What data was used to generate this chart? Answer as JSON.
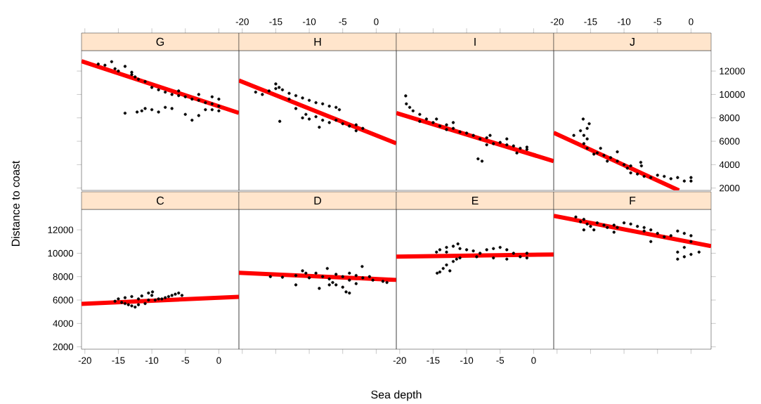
{
  "chart_data": [
    {
      "type": "scatter",
      "title": "G",
      "ylabel": "Distance to coast",
      "xlim": [
        -20.5,
        3
      ],
      "ylim": [
        1800,
        13750
      ],
      "xticks": [
        -20,
        -15,
        -10,
        -5,
        0
      ],
      "yticks": [
        2000,
        4000,
        6000,
        8000,
        10000,
        12000
      ],
      "marker": "circle",
      "tick_labels": false,
      "series": [
        {
          "type": "scatter",
          "color": "#000000",
          "x": [
            -18,
            -17,
            -16,
            -15.5,
            -15,
            -14,
            -13,
            -12.5,
            -12,
            -11,
            -10,
            -9,
            -8,
            -7,
            -6,
            -5,
            -4,
            -3,
            -2,
            -1,
            0,
            0,
            -1,
            -3,
            -6,
            -11,
            -12.2,
            -10,
            -9,
            -7,
            -5,
            -4,
            -3,
            -2,
            -14,
            -11.5,
            -8,
            -1,
            0,
            -13
          ],
          "values": [
            12600,
            12500,
            12800,
            12200,
            12000,
            12400,
            11900,
            11500,
            11300,
            11100,
            10600,
            10400,
            10200,
            10000,
            9900,
            9800,
            9600,
            9500,
            9300,
            9200,
            9000,
            9600,
            9800,
            10000,
            10300,
            8800,
            8500,
            8700,
            8500,
            8800,
            8300,
            7800,
            8200,
            8700,
            8400,
            8600,
            8900,
            8700,
            8600,
            11700
          ]
        },
        {
          "type": "line",
          "color": "#ff0000",
          "marker": "none",
          "x": [
            -20.5,
            3
          ],
          "values": [
            12850,
            8420
          ]
        }
      ]
    },
    {
      "type": "scatter",
      "title": "H",
      "xlim": [
        -20.5,
        3
      ],
      "ylim": [
        1800,
        13750
      ],
      "xticks": [
        -20,
        -15,
        -10,
        -5,
        0
      ],
      "yticks": [
        2000,
        4000,
        6000,
        8000,
        10000,
        12000
      ],
      "marker": "circle",
      "tick_labels": "x",
      "series": [
        {
          "type": "scatter",
          "color": "#000000",
          "x": [
            -18,
            -17,
            -16,
            -15,
            -14.5,
            -14,
            -13,
            -12,
            -11,
            -10,
            -9,
            -8,
            -7,
            -6,
            -5.5,
            -11,
            -10,
            -9,
            -8,
            -7,
            -6,
            -5,
            -4,
            -3,
            -2,
            -3,
            -14.4,
            -8.5,
            -10.5,
            -12,
            -15,
            -13
          ],
          "values": [
            10200,
            10000,
            10300,
            10900,
            10600,
            10400,
            10100,
            9900,
            9700,
            9500,
            9300,
            9200,
            9000,
            8900,
            8700,
            8000,
            7900,
            8100,
            7800,
            7600,
            7800,
            7500,
            7300,
            7400,
            7100,
            6900,
            7700,
            7200,
            8300,
            8800,
            10500,
            9600
          ]
        },
        {
          "type": "line",
          "color": "#ff0000",
          "marker": "none",
          "x": [
            -20.5,
            3
          ],
          "values": [
            11200,
            5820
          ]
        }
      ]
    },
    {
      "type": "scatter",
      "title": "I",
      "xlim": [
        -20.5,
        3
      ],
      "ylim": [
        1800,
        13750
      ],
      "xticks": [
        -20,
        -15,
        -10,
        -5,
        0
      ],
      "yticks": [
        2000,
        4000,
        6000,
        8000,
        10000,
        12000
      ],
      "marker": "circle",
      "tick_labels": false,
      "series": [
        {
          "type": "scatter",
          "color": "#000000",
          "x": [
            -19.1,
            -19,
            -18.5,
            -18,
            -17,
            -16,
            -15,
            -14,
            -13,
            -12,
            -11,
            -10,
            -9,
            -17,
            -14.5,
            -13,
            -8,
            -7,
            -7,
            -6,
            -5,
            -4,
            -3,
            -2,
            -1,
            -1,
            -4,
            -8.3,
            -7.7,
            -2.5,
            -6.5,
            -12
          ],
          "values": [
            9880,
            9200,
            8900,
            8600,
            8300,
            7900,
            7600,
            7300,
            7000,
            7100,
            6800,
            6700,
            6500,
            7700,
            7900,
            7400,
            6200,
            6300,
            5700,
            5800,
            5900,
            5700,
            5600,
            5400,
            5500,
            5300,
            6200,
            4500,
            4300,
            5000,
            6500,
            7600
          ]
        },
        {
          "type": "line",
          "color": "#ff0000",
          "marker": "none",
          "x": [
            -20.5,
            3
          ],
          "values": [
            8420,
            4300
          ]
        }
      ]
    },
    {
      "type": "scatter",
      "title": "J",
      "xlim": [
        -20.5,
        3
      ],
      "ylim": [
        1800,
        13750
      ],
      "xticks": [
        -20,
        -15,
        -10,
        -5,
        0
      ],
      "yticks": [
        2000,
        4000,
        6000,
        8000,
        10000,
        12000
      ],
      "marker": "circle",
      "series": [
        {
          "type": "scatter",
          "color": "#000000",
          "x": [
            -16.1,
            -15.2,
            -15.5,
            -17.5,
            -16.5,
            -16,
            -15.5,
            -16,
            -15.5,
            -14.5,
            -13,
            -12,
            -11,
            -10,
            -9.5,
            -9,
            -8,
            -7,
            -6,
            -5,
            -4,
            -3,
            -2,
            -1,
            0,
            0,
            -9,
            -11,
            -13.5,
            -7.5,
            -7.4,
            -12.5,
            -14
          ],
          "values": [
            7900,
            7500,
            7100,
            6500,
            6900,
            6500,
            6200,
            5800,
            5400,
            4900,
            4800,
            4600,
            4300,
            4000,
            3700,
            3300,
            3200,
            3000,
            2900,
            3100,
            3000,
            2800,
            2900,
            2600,
            2600,
            2900,
            3900,
            5100,
            5400,
            4200,
            3900,
            4300,
            5000
          ]
        },
        {
          "type": "line",
          "color": "#ff0000",
          "marker": "none",
          "x": [
            -20.5,
            -1.8
          ],
          "values": [
            6730,
            1800
          ]
        }
      ]
    },
    {
      "type": "scatter",
      "title": "C",
      "xlim": [
        -20.5,
        3
      ],
      "ylim": [
        1800,
        13750
      ],
      "xticks": [
        -20,
        -15,
        -10,
        -5,
        0
      ],
      "yticks": [
        2000,
        4000,
        6000,
        8000,
        10000,
        12000
      ],
      "marker": "circle",
      "series": [
        {
          "type": "scatter",
          "color": "#000000",
          "x": [
            -15.5,
            -15,
            -14.5,
            -14,
            -13.5,
            -13,
            -12.5,
            -12,
            -12,
            -11.5,
            -11,
            -10.5,
            -10,
            -9.9,
            -9.5,
            -9,
            -8.5,
            -8,
            -7.5,
            -7,
            -6.5,
            -6,
            -5.5,
            -14,
            -13,
            -10.5
          ],
          "values": [
            5900,
            6100,
            5800,
            6200,
            5600,
            6300,
            5400,
            5600,
            6100,
            6350,
            5700,
            6000,
            6400,
            6700,
            6000,
            6100,
            6100,
            6200,
            6300,
            6400,
            6500,
            6600,
            6400,
            5700,
            5500,
            6600
          ]
        },
        {
          "type": "line",
          "color": "#ff0000",
          "marker": "none",
          "x": [
            -20.5,
            3
          ],
          "values": [
            5670,
            6280
          ]
        }
      ]
    },
    {
      "type": "scatter",
      "title": "D",
      "xlabel": "Sea depth",
      "xlim": [
        -20.5,
        3
      ],
      "ylim": [
        1800,
        13750
      ],
      "xticks": [
        -20,
        -15,
        -10,
        -5,
        0
      ],
      "yticks": [
        2000,
        4000,
        6000,
        8000,
        10000,
        12000
      ],
      "marker": "circle",
      "tick_labels": false,
      "series": [
        {
          "type": "scatter",
          "color": "#000000",
          "x": [
            -15.8,
            -14,
            -12,
            -11,
            -10.5,
            -10,
            -9,
            -8,
            -7.3,
            -7,
            -6,
            -5,
            -4,
            -4,
            -3,
            -2.1,
            -2,
            -1,
            -0.5,
            1,
            1.6,
            -12,
            -8.5,
            -7,
            -6,
            -5,
            -4.5,
            -4,
            -3,
            -6.5
          ],
          "values": [
            8000,
            7950,
            8100,
            8500,
            8300,
            7900,
            8300,
            8000,
            8700,
            7800,
            8200,
            8000,
            8300,
            7700,
            8100,
            8870,
            7900,
            8000,
            7700,
            7600,
            7500,
            7300,
            7000,
            7300,
            7300,
            7100,
            6700,
            6600,
            7400,
            7500
          ]
        },
        {
          "type": "line",
          "color": "#ff0000",
          "marker": "none",
          "x": [
            -20.5,
            3
          ],
          "values": [
            8330,
            7720
          ]
        }
      ]
    },
    {
      "type": "scatter",
      "title": "E",
      "xlim": [
        -20.5,
        3
      ],
      "ylim": [
        1800,
        13750
      ],
      "xticks": [
        -20,
        -15,
        -10,
        -5,
        0
      ],
      "yticks": [
        2000,
        4000,
        6000,
        8000,
        10000,
        12000
      ],
      "marker": "circle",
      "tick_labels": "x",
      "series": [
        {
          "type": "scatter",
          "color": "#000000",
          "x": [
            -14.4,
            -14,
            -13.5,
            -13,
            -12.5,
            -12,
            -11.5,
            -11,
            -14.5,
            -14,
            -13,
            -12,
            -11.3,
            -11,
            -10,
            -9,
            -8,
            -7,
            -6,
            -5,
            -4,
            -3,
            -2,
            -1,
            -8.5,
            -6,
            -4,
            -1,
            -13
          ],
          "values": [
            8300,
            8400,
            8700,
            9000,
            8500,
            9300,
            9500,
            9600,
            10100,
            10300,
            10500,
            10600,
            10800,
            10400,
            10300,
            10200,
            10000,
            10300,
            10400,
            10500,
            10300,
            10000,
            9700,
            9600,
            9700,
            9600,
            9500,
            10000,
            10100
          ]
        },
        {
          "type": "line",
          "color": "#ff0000",
          "marker": "none",
          "x": [
            -20.5,
            3
          ],
          "values": [
            9710,
            9890
          ]
        }
      ]
    },
    {
      "type": "scatter",
      "title": "F",
      "xlim": [
        -20.5,
        3
      ],
      "ylim": [
        1800,
        13750
      ],
      "xticks": [
        -20,
        -15,
        -10,
        -5,
        0
      ],
      "yticks": [
        2000,
        4000,
        6000,
        8000,
        10000,
        12000
      ],
      "marker": "circle",
      "tick_labels": false,
      "series": [
        {
          "type": "scatter",
          "color": "#000000",
          "x": [
            -17.2,
            -16.5,
            -16,
            -15.5,
            -15,
            -14,
            -13,
            -12.5,
            -11.5,
            -11,
            -10,
            -9,
            -8,
            -7,
            -6,
            -5,
            -4,
            -3,
            -2,
            -1,
            0,
            0,
            -1,
            -2,
            -2,
            -1,
            0,
            1.2,
            -16,
            -14.5,
            -11.5,
            -6,
            -7
          ],
          "values": [
            13100,
            12700,
            12900,
            12500,
            12300,
            12600,
            12400,
            12200,
            12400,
            12200,
            12600,
            12500,
            12300,
            12200,
            12000,
            11700,
            11400,
            11500,
            11900,
            11700,
            11500,
            11000,
            10500,
            10100,
            9500,
            9700,
            9900,
            10100,
            12000,
            12000,
            11800,
            11000,
            11900
          ]
        },
        {
          "type": "line",
          "color": "#ff0000",
          "marker": "none",
          "x": [
            -20.5,
            3
          ],
          "values": [
            13200,
            10610
          ]
        }
      ]
    }
  ]
}
